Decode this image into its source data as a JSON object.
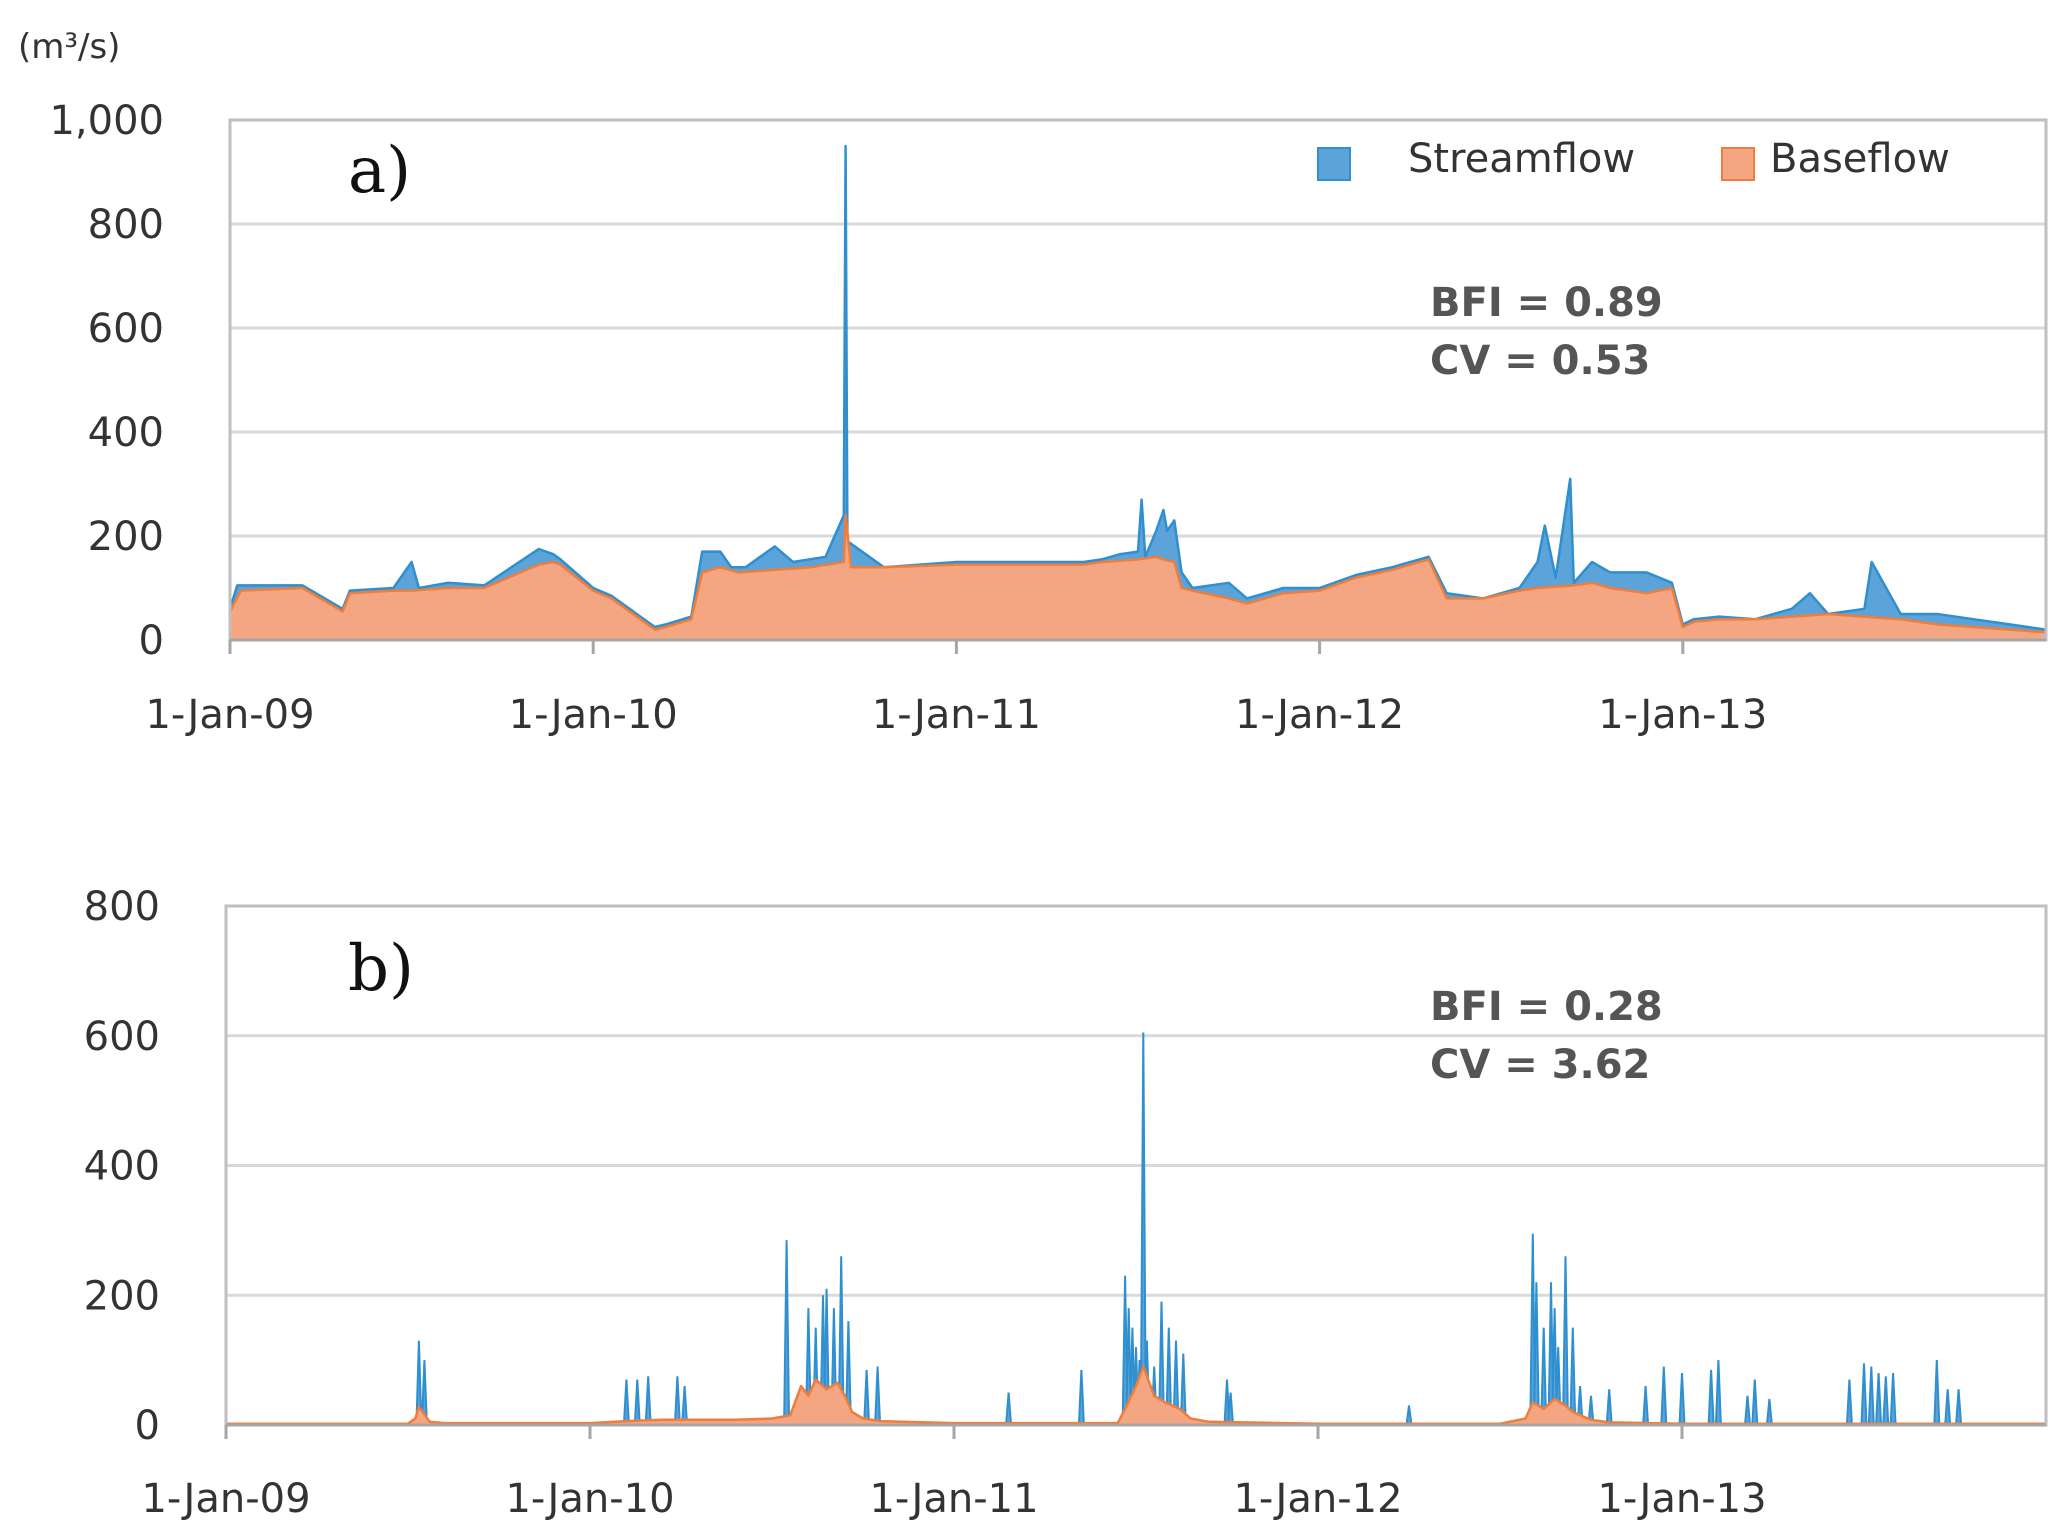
{
  "colors": {
    "streamflow": "#5ba3d9",
    "streamflow_line": "#2f8fcf",
    "baseflow": "#f4a582",
    "baseflow_line": "#ef7d3c",
    "grid": "#d9d9d9",
    "frame": "#bfbfbf"
  },
  "legend": {
    "streamflow": "Streamflow",
    "baseflow": "Baseflow"
  },
  "chart_data": [
    {
      "type": "area",
      "panel_label": "a)",
      "unit_label": "(m³/s)",
      "stats": {
        "bfi": "BFI = 0.89",
        "cv": "CV = 0.53"
      },
      "ylim": [
        0,
        1000
      ],
      "yticks": [
        0,
        200,
        400,
        600,
        800,
        1000
      ],
      "ytick_labels": [
        "0",
        "200",
        "400",
        "600",
        "800",
        "1,000"
      ],
      "xlim": [
        2009.0,
        2014.0
      ],
      "xticks": [
        2009.0,
        2010.0,
        2011.0,
        2012.0,
        2013.0
      ],
      "xtick_labels": [
        "1-Jan-09",
        "1-Jan-10",
        "1-Jan-11",
        "1-Jan-12",
        "1-Jan-13"
      ],
      "legend_position": "top-right",
      "series": [
        {
          "name": "Streamflow",
          "x": [
            2009.0,
            2009.02,
            2009.2,
            2009.31,
            2009.33,
            2009.45,
            2009.5,
            2009.52,
            2009.6,
            2009.7,
            2009.85,
            2009.89,
            2009.91,
            2010.0,
            2010.05,
            2010.17,
            2010.2,
            2010.27,
            2010.3,
            2010.35,
            2010.38,
            2010.42,
            2010.5,
            2010.55,
            2010.64,
            2010.69,
            2010.695,
            2010.7,
            2010.8,
            2011.0,
            2011.2,
            2011.3,
            2011.35,
            2011.4,
            2011.45,
            2011.5,
            2011.51,
            2011.52,
            2011.55,
            2011.57,
            2011.58,
            2011.6,
            2011.62,
            2011.65,
            2011.75,
            2011.8,
            2011.9,
            2012.0,
            2012.1,
            2012.2,
            2012.3,
            2012.35,
            2012.45,
            2012.55,
            2012.6,
            2012.62,
            2012.65,
            2012.69,
            2012.7,
            2012.75,
            2012.8,
            2012.9,
            2012.97,
            2013.0,
            2013.03,
            2013.1,
            2013.2,
            2013.3,
            2013.35,
            2013.4,
            2013.5,
            2013.52,
            2013.6,
            2013.7,
            2013.8,
            2013.9,
            2014.0
          ],
          "y": [
            60,
            105,
            105,
            60,
            95,
            100,
            150,
            100,
            110,
            105,
            175,
            165,
            155,
            100,
            85,
            25,
            30,
            45,
            170,
            170,
            140,
            140,
            180,
            150,
            160,
            240,
            950,
            190,
            140,
            150,
            150,
            150,
            150,
            155,
            165,
            170,
            270,
            160,
            210,
            250,
            210,
            230,
            130,
            100,
            110,
            80,
            100,
            100,
            125,
            140,
            160,
            90,
            80,
            100,
            150,
            220,
            120,
            310,
            110,
            150,
            130,
            130,
            110,
            30,
            40,
            45,
            40,
            60,
            90,
            50,
            60,
            150,
            50,
            50,
            40,
            30,
            20
          ]
        },
        {
          "name": "Baseflow",
          "x": [
            2009.0,
            2009.03,
            2009.2,
            2009.31,
            2009.33,
            2009.45,
            2009.5,
            2009.6,
            2009.7,
            2009.85,
            2009.89,
            2009.91,
            2010.0,
            2010.05,
            2010.17,
            2010.2,
            2010.27,
            2010.3,
            2010.35,
            2010.4,
            2010.5,
            2010.6,
            2010.69,
            2010.695,
            2010.71,
            2010.8,
            2011.0,
            2011.2,
            2011.35,
            2011.4,
            2011.5,
            2011.55,
            2011.57,
            2011.6,
            2011.62,
            2011.65,
            2011.75,
            2011.8,
            2011.9,
            2012.0,
            2012.1,
            2012.2,
            2012.3,
            2012.35,
            2012.45,
            2012.55,
            2012.6,
            2012.7,
            2012.75,
            2012.8,
            2012.9,
            2012.97,
            2013.0,
            2013.03,
            2013.1,
            2013.2,
            2013.3,
            2013.4,
            2013.5,
            2013.6,
            2013.7,
            2013.8,
            2013.9,
            2014.0
          ],
          "y": [
            55,
            95,
            100,
            55,
            90,
            95,
            95,
            100,
            100,
            145,
            150,
            145,
            95,
            80,
            20,
            25,
            40,
            130,
            140,
            130,
            135,
            140,
            150,
            240,
            140,
            140,
            145,
            145,
            145,
            150,
            155,
            160,
            155,
            150,
            100,
            95,
            80,
            70,
            90,
            95,
            120,
            135,
            155,
            80,
            80,
            95,
            100,
            105,
            110,
            100,
            90,
            100,
            25,
            35,
            40,
            40,
            45,
            50,
            45,
            40,
            30,
            25,
            20,
            15
          ]
        }
      ]
    },
    {
      "type": "area",
      "panel_label": "b)",
      "stats": {
        "bfi": "BFI = 0.28",
        "cv": "CV = 3.62"
      },
      "ylim": [
        0,
        800
      ],
      "yticks": [
        0,
        200,
        400,
        600,
        800
      ],
      "ytick_labels": [
        "0",
        "200",
        "400",
        "600",
        "800"
      ],
      "xlim": [
        2009.0,
        2014.0
      ],
      "xticks": [
        2009.0,
        2010.0,
        2011.0,
        2012.0,
        2013.0
      ],
      "xtick_labels": [
        "1-Jan-09",
        "1-Jan-10",
        "1-Jan-11",
        "1-Jan-12",
        "1-Jan-13"
      ],
      "series": [
        {
          "name": "Streamflow",
          "spikes": [
            [
              2009.53,
              130
            ],
            [
              2009.545,
              100
            ],
            [
              2010.1,
              70
            ],
            [
              2010.13,
              70
            ],
            [
              2010.16,
              75
            ],
            [
              2010.24,
              75
            ],
            [
              2010.26,
              60
            ],
            [
              2010.54,
              285
            ],
            [
              2010.6,
              180
            ],
            [
              2010.62,
              150
            ],
            [
              2010.64,
              200
            ],
            [
              2010.65,
              210
            ],
            [
              2010.67,
              180
            ],
            [
              2010.69,
              260
            ],
            [
              2010.71,
              160
            ],
            [
              2010.76,
              85
            ],
            [
              2010.79,
              90
            ],
            [
              2011.15,
              50
            ],
            [
              2011.35,
              85
            ],
            [
              2011.47,
              230
            ],
            [
              2011.48,
              180
            ],
            [
              2011.49,
              150
            ],
            [
              2011.5,
              120
            ],
            [
              2011.51,
              100
            ],
            [
              2011.52,
              605
            ],
            [
              2011.53,
              130
            ],
            [
              2011.55,
              90
            ],
            [
              2011.57,
              190
            ],
            [
              2011.59,
              150
            ],
            [
              2011.61,
              130
            ],
            [
              2011.63,
              110
            ],
            [
              2011.75,
              70
            ],
            [
              2011.76,
              50
            ],
            [
              2012.25,
              30
            ],
            [
              2012.59,
              295
            ],
            [
              2012.6,
              220
            ],
            [
              2012.62,
              150
            ],
            [
              2012.64,
              220
            ],
            [
              2012.65,
              180
            ],
            [
              2012.66,
              120
            ],
            [
              2012.68,
              260
            ],
            [
              2012.7,
              150
            ],
            [
              2012.72,
              60
            ],
            [
              2012.75,
              45
            ],
            [
              2012.8,
              55
            ],
            [
              2012.9,
              60
            ],
            [
              2012.95,
              90
            ],
            [
              2013.0,
              80
            ],
            [
              2013.08,
              85
            ],
            [
              2013.1,
              100
            ],
            [
              2013.18,
              45
            ],
            [
              2013.2,
              70
            ],
            [
              2013.24,
              40
            ],
            [
              2013.46,
              70
            ],
            [
              2013.5,
              95
            ],
            [
              2013.52,
              90
            ],
            [
              2013.54,
              80
            ],
            [
              2013.56,
              75
            ],
            [
              2013.58,
              80
            ],
            [
              2013.7,
              100
            ],
            [
              2013.73,
              55
            ],
            [
              2013.76,
              55
            ]
          ]
        },
        {
          "name": "Baseflow",
          "x": [
            2009.0,
            2009.5,
            2009.52,
            2009.53,
            2009.56,
            2009.6,
            2010.0,
            2010.1,
            2010.2,
            2010.4,
            2010.5,
            2010.55,
            2010.58,
            2010.6,
            2010.62,
            2010.65,
            2010.68,
            2010.7,
            2010.72,
            2010.75,
            2010.8,
            2011.0,
            2011.45,
            2011.47,
            2011.5,
            2011.52,
            2011.55,
            2011.58,
            2011.62,
            2011.65,
            2011.7,
            2012.0,
            2012.5,
            2012.57,
            2012.59,
            2012.62,
            2012.65,
            2012.68,
            2012.7,
            2012.75,
            2012.8,
            2013.0,
            2014.0
          ],
          "y": [
            2,
            2,
            10,
            28,
            5,
            3,
            3,
            6,
            8,
            8,
            10,
            15,
            60,
            45,
            70,
            55,
            65,
            45,
            20,
            10,
            6,
            3,
            3,
            25,
            60,
            90,
            45,
            35,
            25,
            10,
            5,
            2,
            2,
            10,
            35,
            25,
            40,
            30,
            20,
            8,
            4,
            2,
            2
          ]
        }
      ]
    }
  ]
}
